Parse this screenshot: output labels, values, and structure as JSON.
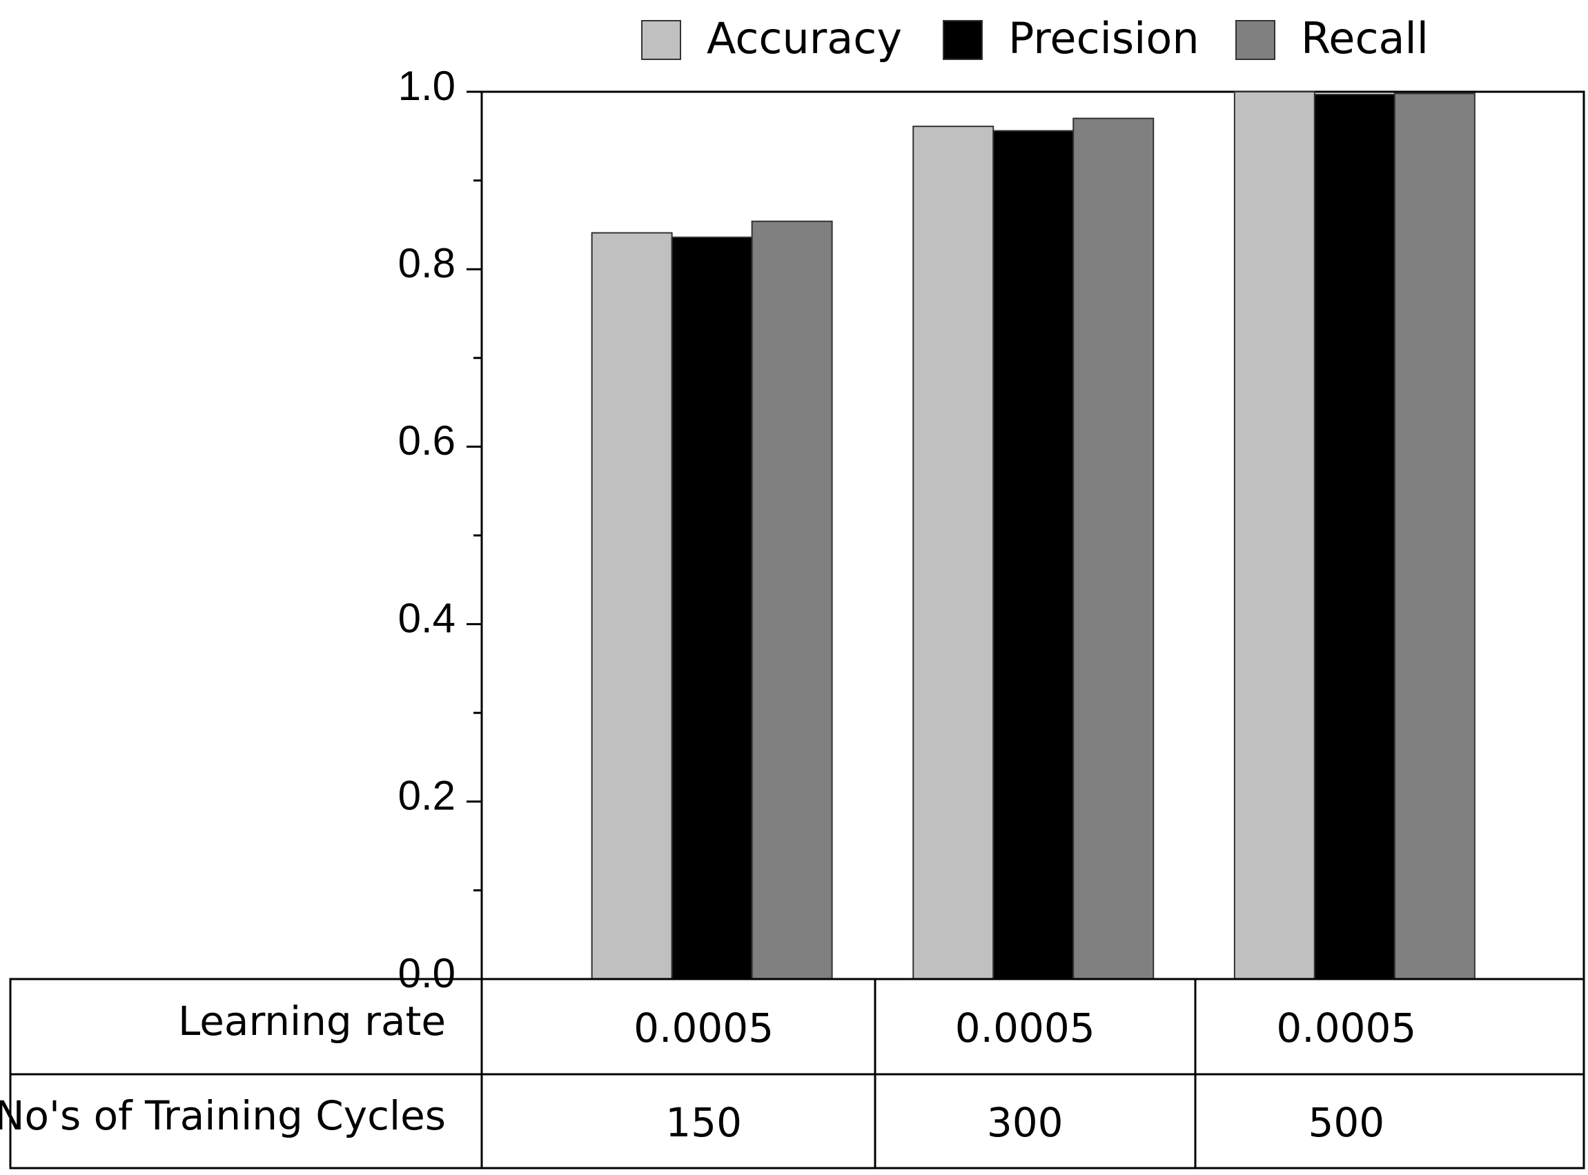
{
  "chart_data": {
    "type": "bar",
    "categories": [
      null,
      null,
      null
    ],
    "series": [
      {
        "name": "Accuracy",
        "color": "#c0c0c0",
        "values": [
          0.841,
          0.961,
          1.0
        ]
      },
      {
        "name": "Precision",
        "color": "#000000",
        "values": [
          0.836,
          0.956,
          0.997
        ]
      },
      {
        "name": "Recall",
        "color": "#808080",
        "values": [
          0.854,
          0.97,
          0.998
        ]
      }
    ],
    "ylim": [
      0,
      1
    ],
    "yticks": [
      {
        "value": 0,
        "label": "0.0"
      },
      0.2,
      0.4,
      0.6,
      0.8,
      {
        "value": 1,
        "label": "1.0"
      }
    ],
    "minor_yticks": [
      0.1,
      0.3,
      0.5,
      0.7,
      0.9
    ],
    "grid": false,
    "legend": "top",
    "table": {
      "row_labels": [
        "Learning rate",
        "No's of Training Cycles"
      ],
      "rows": [
        [
          0.0005,
          0.0005,
          0.0005
        ],
        [
          150,
          300,
          500
        ]
      ]
    }
  }
}
